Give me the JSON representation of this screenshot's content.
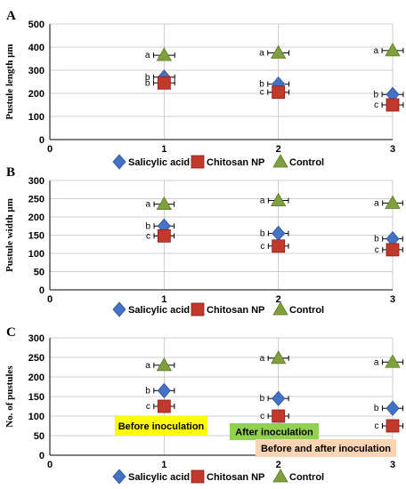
{
  "legend_labels": [
    "Salicylic acid",
    "Chitosan NP",
    "Control"
  ],
  "colors": {
    "salicylic": "#4472C4",
    "chitosan": "#C0392B",
    "control": "#7FA03C",
    "grid": "#BFBFBF",
    "note_yellow": "#FFFF00",
    "note_green": "#92D050",
    "note_peach": "#FBD4B4"
  },
  "notes": [
    "Before inoculation",
    "After inoculation",
    "Before and after inoculation"
  ],
  "chart_data": [
    {
      "panel": "A",
      "type": "scatter",
      "ylabel": "Pustule length µm",
      "xlim": [
        0,
        3
      ],
      "ylim": [
        0,
        500
      ],
      "xticks": [
        0,
        1,
        2,
        3
      ],
      "yticks": [
        0,
        100,
        200,
        300,
        400,
        500
      ],
      "series": [
        {
          "name": "Salicylic acid",
          "marker": "diamond",
          "x": [
            1,
            2,
            3
          ],
          "y": [
            270,
            240,
            195
          ],
          "err": [
            15,
            15,
            15
          ],
          "letters": [
            "b",
            "b",
            "b"
          ]
        },
        {
          "name": "Chitosan NP",
          "marker": "square",
          "x": [
            1,
            2,
            3
          ],
          "y": [
            245,
            205,
            150
          ],
          "err": [
            15,
            15,
            15
          ],
          "letters": [
            "b",
            "c",
            "c"
          ]
        },
        {
          "name": "Control",
          "marker": "triangle",
          "x": [
            1,
            2,
            3
          ],
          "y": [
            365,
            375,
            385
          ],
          "err": [
            15,
            15,
            15
          ],
          "letters": [
            "a",
            "a",
            "a"
          ]
        }
      ]
    },
    {
      "panel": "B",
      "type": "scatter",
      "ylabel": "Pustule width µm",
      "xlim": [
        0,
        3
      ],
      "ylim": [
        0,
        300
      ],
      "xticks": [
        0,
        1,
        2,
        3
      ],
      "yticks": [
        0,
        50,
        100,
        150,
        200,
        250,
        300
      ],
      "series": [
        {
          "name": "Salicylic acid",
          "marker": "diamond",
          "x": [
            1,
            2,
            3
          ],
          "y": [
            175,
            155,
            140
          ],
          "err": [
            8,
            8,
            8
          ],
          "letters": [
            "b",
            "b",
            "b"
          ]
        },
        {
          "name": "Chitosan NP",
          "marker": "square",
          "x": [
            1,
            2,
            3
          ],
          "y": [
            148,
            120,
            110
          ],
          "err": [
            8,
            8,
            8
          ],
          "letters": [
            "c",
            "c",
            "c"
          ]
        },
        {
          "name": "Control",
          "marker": "triangle",
          "x": [
            1,
            2,
            3
          ],
          "y": [
            235,
            245,
            238
          ],
          "err": [
            8,
            8,
            8
          ],
          "letters": [
            "a",
            "a",
            "a"
          ]
        }
      ]
    },
    {
      "panel": "C",
      "type": "scatter",
      "ylabel": "No. of pustules",
      "xlim": [
        0,
        3
      ],
      "ylim": [
        0,
        300
      ],
      "xticks": [
        0,
        1,
        2,
        3
      ],
      "yticks": [
        0,
        50,
        100,
        150,
        200,
        250,
        300
      ],
      "series": [
        {
          "name": "Salicylic acid",
          "marker": "diamond",
          "x": [
            1,
            2,
            3
          ],
          "y": [
            165,
            145,
            120
          ],
          "err": [
            8,
            8,
            8
          ],
          "letters": [
            "b",
            "b",
            "b"
          ]
        },
        {
          "name": "Chitosan NP",
          "marker": "square",
          "x": [
            1,
            2,
            3
          ],
          "y": [
            125,
            100,
            75
          ],
          "err": [
            8,
            8,
            8
          ],
          "letters": [
            "c",
            "c",
            "c"
          ]
        },
        {
          "name": "Control",
          "marker": "triangle",
          "x": [
            1,
            2,
            3
          ],
          "y": [
            230,
            248,
            238
          ],
          "err": [
            8,
            8,
            8
          ],
          "letters": [
            "a",
            "a",
            "a"
          ]
        }
      ]
    }
  ]
}
